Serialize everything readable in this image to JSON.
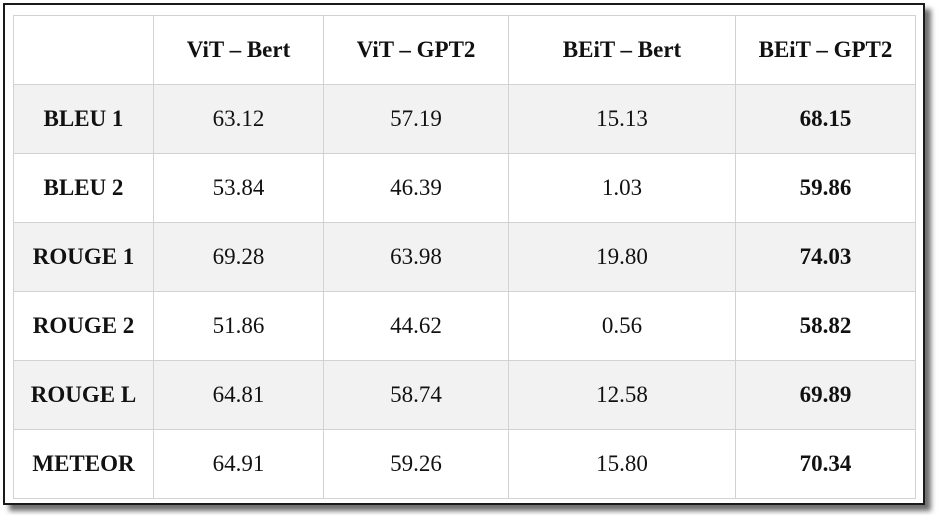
{
  "table": {
    "corner": "",
    "columns": [
      "ViT – Bert",
      "ViT – GPT2",
      "BEiT – Bert",
      "BEiT – GPT2"
    ],
    "rows": [
      {
        "metric": "BLEU 1",
        "values": [
          "63.12",
          "57.19",
          "15.13",
          "68.15"
        ]
      },
      {
        "metric": "BLEU 2",
        "values": [
          "53.84",
          "46.39",
          "1.03",
          "59.86"
        ]
      },
      {
        "metric": "ROUGE 1",
        "values": [
          "69.28",
          "63.98",
          "19.80",
          "74.03"
        ]
      },
      {
        "metric": "ROUGE 2",
        "values": [
          "51.86",
          "44.62",
          "0.56",
          "58.82"
        ]
      },
      {
        "metric": "ROUGE L",
        "values": [
          "64.81",
          "58.74",
          "12.58",
          "69.89"
        ]
      },
      {
        "metric": "METEOR",
        "values": [
          "64.91",
          "59.26",
          "15.80",
          "70.34"
        ]
      }
    ],
    "bold_column": "BEiT – GPT2",
    "colors": {
      "stripe": "#f2f2f2",
      "gridline": "#d2d2d2",
      "frame": "#1a1a1a"
    }
  }
}
